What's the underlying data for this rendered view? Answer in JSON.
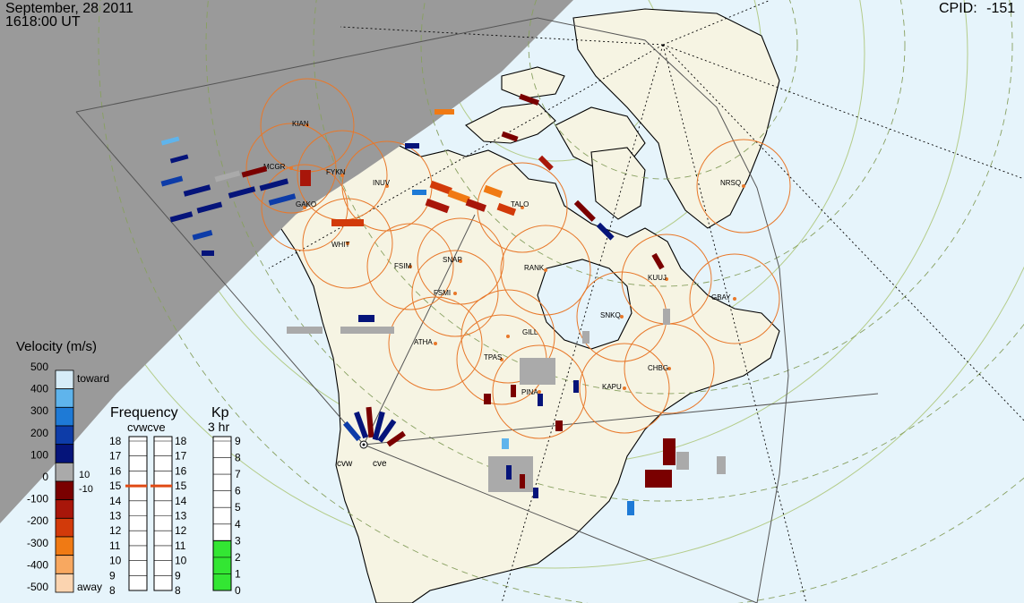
{
  "header": {
    "date": "September, 28 2011",
    "time": "1618:00 UT",
    "cpid_label": "CPID:",
    "cpid_value": "-151"
  },
  "velocity": {
    "title": "Velocity (m/s)",
    "toward_label": "toward",
    "away_label": "away",
    "ticks": [
      "500",
      "400",
      "300",
      "200",
      "100",
      "0",
      "-100",
      "-200",
      "-300",
      "-400",
      "-500"
    ],
    "threshold_pos": "10",
    "threshold_neg": "-10",
    "colors": [
      "#d6ecf8",
      "#5fb4ec",
      "#1e7ad6",
      "#0d3ca8",
      "#05147a",
      "#aaaaaa",
      "#7a0000",
      "#a8160a",
      "#d23a0a",
      "#f07a14",
      "#f8a860",
      "#fbd4b0"
    ]
  },
  "frequency": {
    "title": "Frequency",
    "radars": [
      "cvw",
      "cve"
    ],
    "radar_header": "cvwcve",
    "ticks": [
      "18",
      "17",
      "16",
      "15",
      "14",
      "13",
      "12",
      "11",
      "10",
      "9",
      "8"
    ],
    "cvw_value_mhz": 15.0,
    "cve_value_mhz": 15.0,
    "marker_color": "#e04a14"
  },
  "kp": {
    "title": "Kp",
    "subtitle": "3 hr",
    "ticks": [
      "9",
      "8",
      "7",
      "6",
      "5",
      "4",
      "3",
      "2",
      "1",
      "0"
    ],
    "value": 3,
    "fill_color": "#33e633"
  },
  "map": {
    "night_color": "#9a9a9a",
    "ocean_color": "#e6f4fb",
    "land_color": "#f6f4e3",
    "circle_color": "#e8782a",
    "radar_sites": [
      "cvw",
      "cve"
    ],
    "stations": [
      {
        "code": "KIAN"
      },
      {
        "code": "MCGR"
      },
      {
        "code": "FYKN"
      },
      {
        "code": "GAKO"
      },
      {
        "code": "INUV"
      },
      {
        "code": "WHIT"
      },
      {
        "code": "FSIM"
      },
      {
        "code": "SNAP"
      },
      {
        "code": "FSMI"
      },
      {
        "code": "TALO"
      },
      {
        "code": "RANK"
      },
      {
        "code": "ATHA"
      },
      {
        "code": "GILL"
      },
      {
        "code": "TPAS"
      },
      {
        "code": "PINA"
      },
      {
        "code": "SNKQ"
      },
      {
        "code": "KUUJ"
      },
      {
        "code": "GBAY"
      },
      {
        "code": "CHBG"
      },
      {
        "code": "KAPU"
      },
      {
        "code": "NRSQ"
      }
    ]
  }
}
